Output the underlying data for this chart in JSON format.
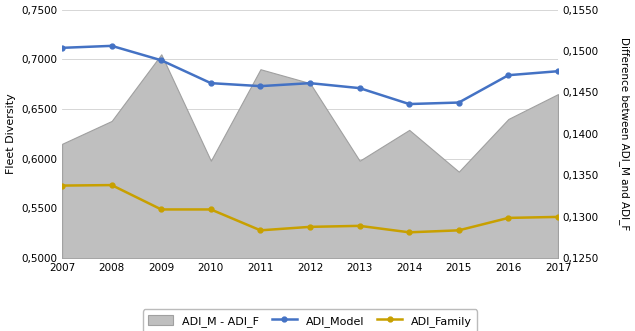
{
  "years": [
    2007,
    2008,
    2009,
    2010,
    2011,
    2012,
    2013,
    2014,
    2015,
    2016,
    2017
  ],
  "adi_model": [
    0.7115,
    0.7135,
    0.699,
    0.676,
    0.673,
    0.676,
    0.671,
    0.655,
    0.6565,
    0.684,
    0.688
  ],
  "adi_family": [
    0.573,
    0.5735,
    0.549,
    0.549,
    0.528,
    0.5315,
    0.5325,
    0.526,
    0.528,
    0.5405,
    0.5415
  ],
  "adi_diff_area": [
    0.615,
    0.638,
    0.705,
    0.598,
    0.69,
    0.676,
    0.598,
    0.629,
    0.587,
    0.64,
    0.665
  ],
  "left_ylim": [
    0.5,
    0.75
  ],
  "right_ylim": [
    0.125,
    0.155
  ],
  "left_yticks": [
    0.5,
    0.55,
    0.6,
    0.65,
    0.7,
    0.75
  ],
  "right_yticks": [
    0.125,
    0.13,
    0.135,
    0.14,
    0.145,
    0.15,
    0.155
  ],
  "ylabel_left": "Fleet Diversity",
  "ylabel_right": "Difference between ADI_M and ADI_F",
  "area_color": "#bfbfbf",
  "area_edge_color": "#a0a0a0",
  "line_model_color": "#4472c4",
  "line_family_color": "#c8a000",
  "legend_labels": [
    "ADI_M - ADI_F",
    "ADI_Model",
    "ADI_Family"
  ],
  "bg_color": "#ffffff",
  "grid_color": "#d0d0d0"
}
